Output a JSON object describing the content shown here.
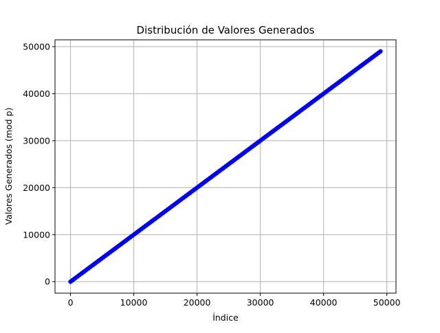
{
  "chart_data": {
    "type": "scatter",
    "title": "Distribución de Valores Generados",
    "xlabel": "Índice",
    "ylabel": "Valores Generados (mod p)",
    "xlim": [
      -2450,
      51450
    ],
    "ylim": [
      -2450,
      51450
    ],
    "xticks": [
      0,
      10000,
      20000,
      30000,
      40000,
      50000
    ],
    "yticks": [
      0,
      10000,
      20000,
      30000,
      40000,
      50000
    ],
    "xtick_labels": [
      "0",
      "10000",
      "20000",
      "30000",
      "40000",
      "50000"
    ],
    "ytick_labels": [
      "0",
      "10000",
      "20000",
      "30000",
      "40000",
      "50000"
    ],
    "grid": true,
    "marker_color": "#0000ff",
    "series": [
      {
        "x_range": [
          0,
          48999
        ],
        "y_equals_x": true,
        "sampled_points": [
          [
            0,
            0
          ],
          [
            5000,
            5000
          ],
          [
            10000,
            10000
          ],
          [
            15000,
            15000
          ],
          [
            20000,
            20000
          ],
          [
            25000,
            25000
          ],
          [
            30000,
            30000
          ],
          [
            35000,
            35000
          ],
          [
            40000,
            40000
          ],
          [
            45000,
            45000
          ],
          [
            48999,
            48999
          ]
        ]
      }
    ]
  }
}
